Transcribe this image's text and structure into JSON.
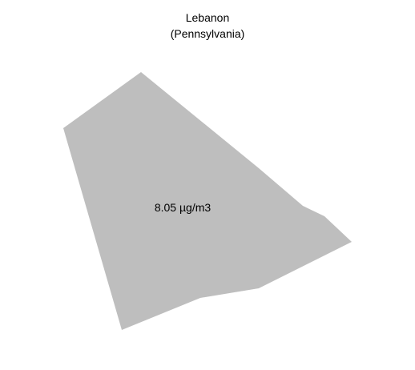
{
  "map": {
    "region_name": "Lebanon",
    "state_name": "(Pennsylvania)",
    "value_label": "8.05 µg/m3",
    "fill_color": "#bebebe",
    "background_color": "#ffffff",
    "text_color": "#000000"
  }
}
